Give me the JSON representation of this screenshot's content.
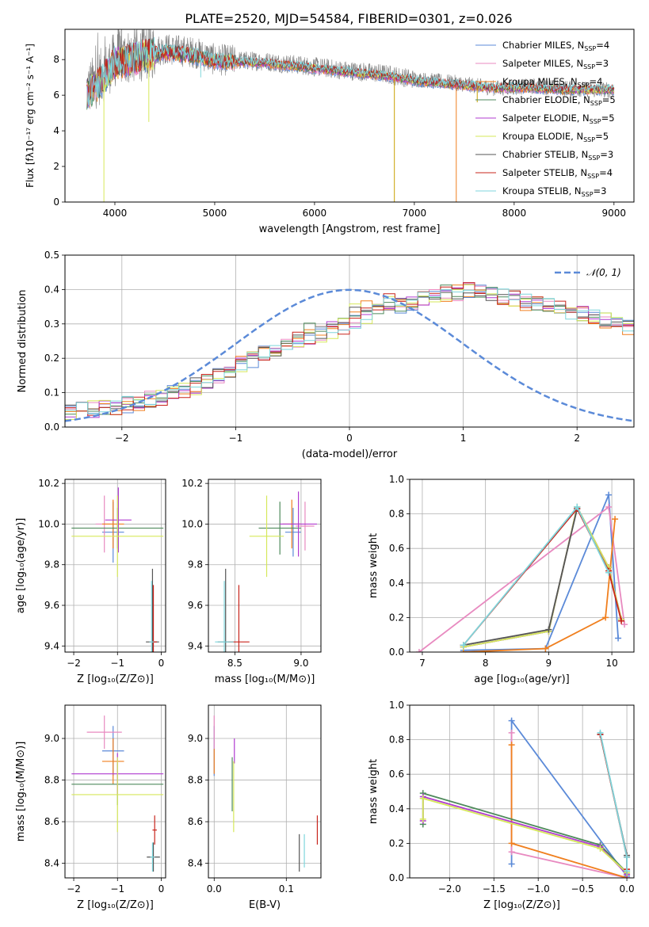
{
  "figure": {
    "title": "PLATE=2520, MJD=54584, FIBERID=0301, z=0.026"
  },
  "colors": {
    "Chabrier MILES": "#5b8ad8",
    "Salpeter MILES": "#e88ac0",
    "Kroupa MILES": "#f07f1e",
    "Chabrier ELODIE": "#4f8a5c",
    "Salpeter ELODIE": "#b03bd0",
    "Kroupa ELODIE": "#d6e85a",
    "Chabrier STELIB": "#555555",
    "Salpeter STELIB": "#c8241c",
    "Kroupa STELIB": "#7fd6dc"
  },
  "chart_data": [
    {
      "id": "spectrum",
      "type": "line",
      "xlabel": "wavelength [Angstrom, rest frame]",
      "ylabel": "Flux [fλ10⁻¹⁷ erg cm⁻² s⁻¹ A⁻¹]",
      "xlim": [
        3500,
        9200
      ],
      "ylim": [
        0,
        9.7
      ],
      "xticks": [
        4000,
        5000,
        6000,
        7000,
        8000,
        9000
      ],
      "yticks": [
        0,
        2,
        4,
        6,
        8
      ],
      "grid": false,
      "legend": "top-right",
      "legend_entries": [
        {
          "name": "Chabrier MILES, N",
          "sub": "SSP",
          "tail": "=4",
          "key": "Chabrier MILES"
        },
        {
          "name": "Salpeter MILES, N",
          "sub": "SSP",
          "tail": "=3",
          "key": "Salpeter MILES"
        },
        {
          "name": "Kroupa MILES, N",
          "sub": "SSP",
          "tail": "=4",
          "key": "Kroupa MILES"
        },
        {
          "name": "Chabrier ELODIE, N",
          "sub": "SSP",
          "tail": "=5",
          "key": "Chabrier ELODIE"
        },
        {
          "name": "Salpeter ELODIE, N",
          "sub": "SSP",
          "tail": "=5",
          "key": "Salpeter ELODIE"
        },
        {
          "name": "Kroupa ELODIE, N",
          "sub": "SSP",
          "tail": "=5",
          "key": "Kroupa ELODIE"
        },
        {
          "name": "Chabrier STELIB, N",
          "sub": "SSP",
          "tail": "=3",
          "key": "Chabrier STELIB"
        },
        {
          "name": "Salpeter STELIB, N",
          "sub": "SSP",
          "tail": "=4",
          "key": "Salpeter STELIB"
        },
        {
          "name": "Kroupa STELIB, N",
          "sub": "SSP",
          "tail": "=3",
          "key": "Kroupa STELIB"
        }
      ],
      "data_series": {
        "name": "data",
        "color": "#808080",
        "continuum": [
          [
            3720,
            6.3
          ],
          [
            3900,
            7.3
          ],
          [
            4000,
            8.0
          ],
          [
            4300,
            8.4
          ],
          [
            4500,
            8.6
          ],
          [
            4800,
            8.4
          ],
          [
            5000,
            8.0
          ],
          [
            5500,
            7.9
          ],
          [
            6000,
            7.6
          ],
          [
            6300,
            7.4
          ],
          [
            6700,
            7.2
          ],
          [
            7000,
            6.9
          ],
          [
            7400,
            6.7
          ],
          [
            7800,
            6.4
          ],
          [
            8200,
            6.5
          ],
          [
            8500,
            6.4
          ],
          [
            8800,
            6.3
          ],
          [
            9000,
            6.3
          ]
        ]
      },
      "model_series": {
        "color": "#7fd6dc",
        "continuum": [
          [
            3720,
            6.0
          ],
          [
            3900,
            7.0
          ],
          [
            4000,
            7.8
          ],
          [
            4300,
            8.2
          ],
          [
            4500,
            8.4
          ],
          [
            4800,
            8.2
          ],
          [
            5000,
            7.9
          ],
          [
            5500,
            7.8
          ],
          [
            6000,
            7.5
          ],
          [
            6300,
            7.3
          ],
          [
            6700,
            7.1
          ],
          [
            7000,
            6.8
          ],
          [
            7400,
            6.6
          ],
          [
            7800,
            6.4
          ],
          [
            8200,
            6.4
          ],
          [
            8500,
            6.3
          ],
          [
            8800,
            6.3
          ],
          [
            9000,
            6.3
          ]
        ]
      },
      "dips": [
        [
          3890,
          0.0
        ],
        [
          4340,
          4.5
        ],
        [
          4860,
          7.0
        ],
        [
          6800,
          0.0
        ],
        [
          7420,
          0.0
        ],
        [
          7630,
          5.6
        ]
      ]
    },
    {
      "id": "residuals",
      "type": "line",
      "xlabel": "(data-model)/error",
      "ylabel": "Normed distribution",
      "xlim": [
        -2.5,
        2.5
      ],
      "ylim": [
        0,
        0.5
      ],
      "xticks": [
        -2,
        -1,
        0,
        1,
        2
      ],
      "yticks": [
        0.0,
        0.1,
        0.2,
        0.3,
        0.4,
        0.5
      ],
      "grid": true,
      "legend": "top-right",
      "legend_entry": "𝒩(0, 1)",
      "gaussian": {
        "mean": 0,
        "sigma": 1,
        "color": "#5b8ad8"
      },
      "bin_width": 0.1,
      "hist_shape": [
        0.045,
        0.048,
        0.052,
        0.056,
        0.06,
        0.066,
        0.072,
        0.08,
        0.088,
        0.096,
        0.105,
        0.118,
        0.132,
        0.148,
        0.164,
        0.182,
        0.198,
        0.212,
        0.226,
        0.24,
        0.252,
        0.262,
        0.272,
        0.282,
        0.295,
        0.31,
        0.324,
        0.335,
        0.344,
        0.352,
        0.362,
        0.37,
        0.38,
        0.388,
        0.392,
        0.398,
        0.394,
        0.388,
        0.38,
        0.372,
        0.362,
        0.355,
        0.35,
        0.345,
        0.338,
        0.33,
        0.32,
        0.312,
        0.3,
        0.29,
        0.282,
        0.272,
        0.262,
        0.248,
        0.234,
        0.222,
        0.21,
        0.196,
        0.184,
        0.172,
        0.16,
        0.15,
        0.14,
        0.13,
        0.12,
        0.112,
        0.104,
        0.096,
        0.088,
        0.082,
        0.076,
        0.07,
        0.064,
        0.06,
        0.056,
        0.052,
        0.048,
        0.046,
        0.044,
        0.042,
        0.04,
        0.038,
        0.036,
        0.035,
        0.034,
        0.033,
        0.032,
        0.031,
        0.03,
        0.03
      ]
    },
    {
      "id": "age_vs_Z",
      "type": "scatter",
      "xlabel": "Z [log₁₀(Z/Z⊙)]",
      "ylabel": "age [log₁₀(age/yr)]",
      "xlim": [
        -2.2,
        0.1
      ],
      "ylim": [
        9.37,
        10.22
      ],
      "xticks": [
        -2,
        -1,
        0
      ],
      "yticks": [
        9.4,
        9.6,
        9.8,
        10.0,
        10.2
      ],
      "grid": true,
      "errorbars": [
        {
          "key": "Chabrier MILES",
          "x": -1.1,
          "xerr": 0.25,
          "y": 9.96,
          "yerr": 0.15
        },
        {
          "key": "Salpeter MILES",
          "x": -1.3,
          "xerr": 0.2,
          "y": 10.0,
          "yerr": 0.14
        },
        {
          "key": "Kroupa MILES",
          "x": -1.1,
          "xerr": 0.25,
          "y": 10.0,
          "yerr": 0.12
        },
        {
          "key": "Chabrier ELODIE",
          "x": -1.0,
          "xerr": 1.05,
          "y": 9.98,
          "yerr": 0.1
        },
        {
          "key": "Salpeter ELODIE",
          "x": -0.98,
          "xerr": 0.3,
          "y": 10.02,
          "yerr": 0.16
        },
        {
          "key": "Kroupa ELODIE",
          "x": -1.0,
          "xerr": 1.05,
          "y": 9.94,
          "yerr": 0.2
        },
        {
          "key": "Chabrier STELIB",
          "x": -0.2,
          "xerr": 0.15,
          "y": 9.42,
          "yerr": 0.36
        },
        {
          "key": "Salpeter STELIB",
          "x": -0.18,
          "xerr": 0.08,
          "y": 9.42,
          "yerr": 0.28
        },
        {
          "key": "Kroupa STELIB",
          "x": -0.22,
          "xerr": 0.05,
          "y": 9.42,
          "yerr": 0.3
        }
      ]
    },
    {
      "id": "age_vs_mass",
      "type": "scatter",
      "xlabel": "mass [log₁₀(M/M⊙)]",
      "ylabel": "",
      "xlim": [
        8.3,
        9.15
      ],
      "ylim": [
        9.37,
        10.22
      ],
      "xticks": [
        8.5,
        9.0
      ],
      "yticks": [
        9.4,
        9.6,
        9.8,
        10.0,
        10.2
      ],
      "grid": true,
      "errorbars": [
        {
          "key": "Chabrier MILES",
          "x": 8.94,
          "xerr": 0.06,
          "y": 9.96,
          "yerr": 0.12
        },
        {
          "key": "Salpeter MILES",
          "x": 9.03,
          "xerr": 0.07,
          "y": 9.99,
          "yerr": 0.12
        },
        {
          "key": "Kroupa MILES",
          "x": 8.93,
          "xerr": 0.07,
          "y": 10.0,
          "yerr": 0.12
        },
        {
          "key": "Chabrier ELODIE",
          "x": 8.84,
          "xerr": 0.16,
          "y": 9.98,
          "yerr": 0.13
        },
        {
          "key": "Salpeter ELODIE",
          "x": 8.98,
          "xerr": 0.14,
          "y": 10.0,
          "yerr": 0.16
        },
        {
          "key": "Kroupa ELODIE",
          "x": 8.74,
          "xerr": 0.13,
          "y": 9.94,
          "yerr": 0.2
        },
        {
          "key": "Chabrier STELIB",
          "x": 8.43,
          "xerr": 0.06,
          "y": 9.42,
          "yerr": 0.36
        },
        {
          "key": "Salpeter STELIB",
          "x": 8.53,
          "xerr": 0.08,
          "y": 9.42,
          "yerr": 0.28
        },
        {
          "key": "Kroupa STELIB",
          "x": 8.42,
          "xerr": 0.07,
          "y": 9.42,
          "yerr": 0.3
        }
      ]
    },
    {
      "id": "weight_vs_age",
      "type": "line",
      "xlabel": "age [log₁₀(age/yr)]",
      "ylabel": "mass weight",
      "xlim": [
        6.8,
        10.35
      ],
      "ylim": [
        0,
        1.0
      ],
      "xticks": [
        7,
        8,
        9,
        10
      ],
      "yticks": [
        0.0,
        0.2,
        0.4,
        0.6,
        0.8,
        1.0
      ],
      "grid": true,
      "series": [
        {
          "key": "Chabrier MILES",
          "x": [
            7.65,
            8.95,
            9.95,
            10.1
          ],
          "y": [
            0.01,
            0.02,
            0.91,
            0.08
          ]
        },
        {
          "key": "Salpeter MILES",
          "x": [
            6.95,
            9.95,
            10.2
          ],
          "y": [
            0.0,
            0.84,
            0.16
          ]
        },
        {
          "key": "Kroupa MILES",
          "x": [
            7.65,
            8.95,
            9.9,
            10.05
          ],
          "y": [
            0.0,
            0.02,
            0.2,
            0.77
          ]
        },
        {
          "key": "Chabrier ELODIE",
          "x": [
            7.65,
            9.0,
            9.45,
            9.95,
            10.15
          ],
          "y": [
            0.03,
            0.12,
            0.84,
            0.49,
            0.19
          ]
        },
        {
          "key": "Salpeter ELODIE",
          "x": [
            7.65,
            9.0,
            9.45,
            9.95,
            10.15
          ],
          "y": [
            0.03,
            0.12,
            0.84,
            0.49,
            0.19
          ]
        },
        {
          "key": "Kroupa ELODIE",
          "x": [
            7.65,
            9.0,
            9.45,
            9.95,
            10.15
          ],
          "y": [
            0.03,
            0.12,
            0.84,
            0.49,
            0.19
          ]
        },
        {
          "key": "Chabrier STELIB",
          "x": [
            7.65,
            9.0,
            9.45
          ],
          "y": [
            0.04,
            0.13,
            0.83
          ]
        },
        {
          "key": "Salpeter STELIB",
          "x": [
            7.65,
            9.45,
            9.95,
            10.15
          ],
          "y": [
            0.04,
            0.83,
            0.47,
            0.18
          ]
        },
        {
          "key": "Kroupa STELIB",
          "x": [
            7.65,
            9.45,
            9.95
          ],
          "y": [
            0.04,
            0.84,
            0.46
          ]
        }
      ]
    },
    {
      "id": "mass_vs_Z",
      "type": "scatter",
      "xlabel": "Z [log₁₀(Z/Z⊙)]",
      "ylabel": "mass [log₁₀(M/M⊙)]",
      "xlim": [
        -2.2,
        0.1
      ],
      "ylim": [
        8.33,
        9.16
      ],
      "xticks": [
        -2,
        -1,
        0
      ],
      "yticks": [
        8.4,
        8.6,
        8.8,
        9.0
      ],
      "grid": true,
      "errorbars": [
        {
          "key": "Chabrier MILES",
          "x": -1.1,
          "xerr": 0.25,
          "y": 8.94,
          "yerr": 0.12
        },
        {
          "key": "Salpeter MILES",
          "x": -1.3,
          "xerr": 0.4,
          "y": 9.03,
          "yerr": 0.08
        },
        {
          "key": "Kroupa MILES",
          "x": -1.1,
          "xerr": 0.25,
          "y": 8.89,
          "yerr": 0.11
        },
        {
          "key": "Chabrier ELODIE",
          "x": -1.0,
          "xerr": 1.05,
          "y": 8.78,
          "yerr": 0.1
        },
        {
          "key": "Salpeter ELODIE",
          "x": -1.0,
          "xerr": 1.05,
          "y": 8.83,
          "yerr": 0.1
        },
        {
          "key": "Kroupa ELODIE",
          "x": -1.0,
          "xerr": 1.05,
          "y": 8.73,
          "yerr": 0.18
        },
        {
          "key": "Chabrier STELIB",
          "x": -0.18,
          "xerr": 0.15,
          "y": 8.43,
          "yerr": 0.07
        },
        {
          "key": "Salpeter STELIB",
          "x": -0.15,
          "xerr": 0.05,
          "y": 8.56,
          "yerr": 0.07
        },
        {
          "key": "Kroupa STELIB",
          "x": -0.2,
          "xerr": 0.05,
          "y": 8.43,
          "yerr": 0.07
        }
      ]
    },
    {
      "id": "mass_vs_ebv",
      "type": "scatter",
      "xlabel": "E(B-V)",
      "ylabel": "",
      "xlim": [
        -0.008,
        0.148
      ],
      "ylim": [
        8.33,
        9.16
      ],
      "xticks": [
        0.0,
        0.1
      ],
      "yticks": [
        8.4,
        8.6,
        8.8,
        9.0
      ],
      "grid": true,
      "errorbars": [
        {
          "key": "Chabrier MILES",
          "x": 0.0,
          "xerr": 0,
          "y": 8.94,
          "yerr": 0.12
        },
        {
          "key": "Salpeter MILES",
          "x": 0.0,
          "xerr": 0,
          "y": 9.03,
          "yerr": 0.08
        },
        {
          "key": "Kroupa MILES",
          "x": 0.0,
          "xerr": 0,
          "y": 8.89,
          "yerr": 0.06
        },
        {
          "key": "Chabrier ELODIE",
          "x": 0.025,
          "xerr": 0,
          "y": 8.78,
          "yerr": 0.13
        },
        {
          "key": "Salpeter ELODIE",
          "x": 0.028,
          "xerr": 0,
          "y": 8.94,
          "yerr": 0.06
        },
        {
          "key": "Kroupa ELODIE",
          "x": 0.027,
          "xerr": 0,
          "y": 8.72,
          "yerr": 0.17
        },
        {
          "key": "Chabrier STELIB",
          "x": 0.118,
          "xerr": 0,
          "y": 8.45,
          "yerr": 0.09
        },
        {
          "key": "Salpeter STELIB",
          "x": 0.143,
          "xerr": 0,
          "y": 8.56,
          "yerr": 0.07
        },
        {
          "key": "Kroupa STELIB",
          "x": 0.125,
          "xerr": 0,
          "y": 8.46,
          "yerr": 0.08
        }
      ]
    },
    {
      "id": "weight_vs_Z",
      "type": "line",
      "xlabel": "Z [log₁₀(Z/Z⊙)]",
      "ylabel": "mass weight",
      "xlim": [
        -2.45,
        0.08
      ],
      "ylim": [
        0,
        1.0
      ],
      "xticks": [
        -2.0,
        -1.5,
        -1.0,
        -0.5,
        0.0
      ],
      "yticks": [
        0.0,
        0.2,
        0.4,
        0.6,
        0.8,
        1.0
      ],
      "grid": true,
      "series": [
        {
          "key": "Chabrier MILES",
          "x": [
            -1.3,
            -1.3,
            0.0
          ],
          "y": [
            0.08,
            0.91,
            0.01
          ]
        },
        {
          "key": "Salpeter MILES",
          "x": [
            -1.3,
            -1.3,
            0.0
          ],
          "y": [
            0.84,
            0.15,
            0.0
          ]
        },
        {
          "key": "Kroupa MILES",
          "x": [
            -1.3,
            -1.3,
            0.0,
            0.0
          ],
          "y": [
            0.77,
            0.2,
            0.0,
            0.02
          ]
        },
        {
          "key": "Chabrier ELODIE",
          "x": [
            -2.3,
            -2.3,
            -0.3,
            0.0
          ],
          "y": [
            0.31,
            0.49,
            0.19,
            0.03
          ]
        },
        {
          "key": "Salpeter ELODIE",
          "x": [
            -2.3,
            -2.3,
            -0.3,
            0.0
          ],
          "y": [
            0.33,
            0.47,
            0.18,
            0.02
          ]
        },
        {
          "key": "Kroupa ELODIE",
          "x": [
            -2.3,
            -2.3,
            -0.3,
            0.0
          ],
          "y": [
            0.34,
            0.46,
            0.17,
            0.03
          ]
        },
        {
          "key": "Chabrier STELIB",
          "x": [
            -0.3,
            0.0,
            0.0
          ],
          "y": [
            0.83,
            0.13,
            0.04
          ]
        },
        {
          "key": "Salpeter STELIB",
          "x": [
            -0.3,
            0.0,
            0.0
          ],
          "y": [
            0.83,
            0.12,
            0.05
          ]
        },
        {
          "key": "Kroupa STELIB",
          "x": [
            -0.3,
            0.0,
            0.0
          ],
          "y": [
            0.84,
            0.12,
            0.04
          ]
        }
      ]
    }
  ]
}
